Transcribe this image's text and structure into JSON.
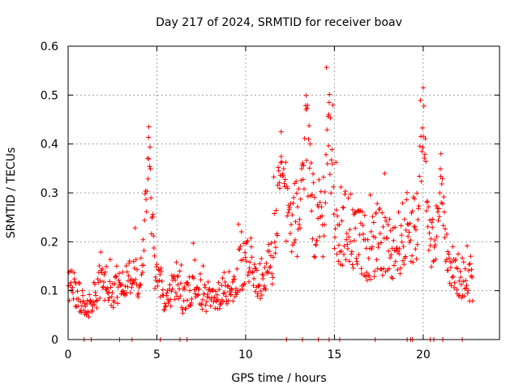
{
  "chart_data": {
    "type": "scatter",
    "title": "Day 217 of 2024, SRMTID for receiver boav",
    "xlabel": "GPS time / hours",
    "ylabel": "SRMTID / TECUs",
    "xlim": [
      0,
      24.3
    ],
    "ylim": [
      0,
      0.6
    ],
    "xticks": [
      0,
      5,
      10,
      15,
      20
    ],
    "xtick_labels": [
      "0",
      "5",
      "10",
      "15",
      "20"
    ],
    "yticks": [
      0,
      0.1,
      0.2,
      0.3,
      0.4,
      0.5,
      0.6
    ],
    "ytick_labels": [
      "0",
      "0.1",
      "0.2",
      "0.3",
      "0.4",
      "0.5",
      "0.6"
    ],
    "grid": true,
    "marker": "+",
    "color": "#ff0000",
    "trend": {
      "description": "approximate central level of SRMTID vs time (hours, TECU)",
      "x": [
        0,
        0.5,
        1,
        1.5,
        2,
        2.5,
        3,
        3.5,
        4,
        4.5,
        5,
        5.5,
        6,
        6.5,
        7,
        7.5,
        8,
        8.5,
        9,
        9.5,
        10,
        10.5,
        11,
        11.5,
        12,
        12.5,
        13,
        13.5,
        14,
        14.5,
        15,
        15.5,
        16,
        16.5,
        17,
        17.5,
        18,
        18.5,
        19,
        19.5,
        20,
        20.5,
        21,
        21.5,
        22,
        22.5,
        22.8
      ],
      "y": [
        0.11,
        0.1,
        0.06,
        0.09,
        0.12,
        0.1,
        0.11,
        0.12,
        0.13,
        0.16,
        0.13,
        0.08,
        0.11,
        0.08,
        0.11,
        0.09,
        0.08,
        0.09,
        0.1,
        0.13,
        0.17,
        0.13,
        0.11,
        0.17,
        0.22,
        0.24,
        0.25,
        0.28,
        0.25,
        0.25,
        0.24,
        0.23,
        0.22,
        0.2,
        0.18,
        0.2,
        0.19,
        0.19,
        0.22,
        0.24,
        0.21,
        0.21,
        0.2,
        0.15,
        0.13,
        0.12,
        0.12
      ]
    },
    "spikes": [
      {
        "x": 4.55,
        "y": 0.435
      },
      {
        "x": 13.4,
        "y": 0.47
      },
      {
        "x": 14.7,
        "y": 0.485
      },
      {
        "x": 20.0,
        "y": 0.515
      },
      {
        "x": 12.0,
        "y": 0.425
      },
      {
        "x": 21.0,
        "y": 0.38
      }
    ],
    "zero_points_x": [
      0.9,
      1.3,
      2.9,
      3.6,
      5.2,
      6.3,
      6.7,
      12.3,
      13.2,
      14.1,
      14.7,
      15.3,
      17.3,
      19.1,
      19.3,
      19.4,
      20.4,
      20.6,
      21.1,
      22.2
    ]
  }
}
